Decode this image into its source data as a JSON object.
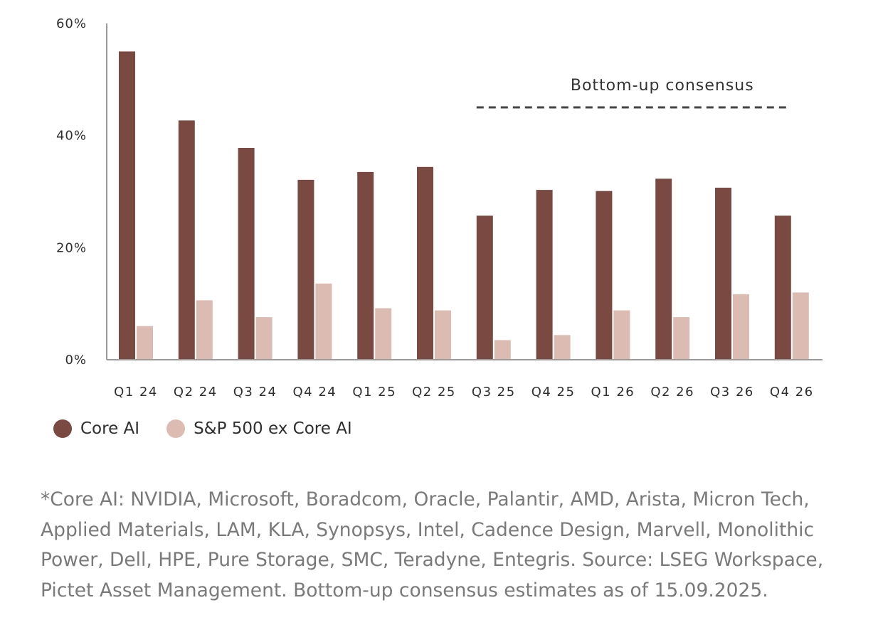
{
  "chart_data": {
    "type": "bar",
    "categories": [
      "Q1 24",
      "Q2 24",
      "Q3 24",
      "Q4 24",
      "Q1 25",
      "Q2 25",
      "Q3 25",
      "Q4 25",
      "Q1 26",
      "Q2 26",
      "Q3 26",
      "Q4 26"
    ],
    "series": [
      {
        "name": "Core AI",
        "color": "#7a4a42",
        "values": [
          55,
          42.7,
          37.8,
          32.1,
          33.5,
          34.4,
          25.7,
          30.3,
          30.1,
          32.3,
          30.7,
          25.7
        ]
      },
      {
        "name": "S&P 500 ex Core AI",
        "color": "#dcbcb2",
        "values": [
          6.0,
          10.6,
          7.6,
          13.6,
          9.2,
          8.8,
          3.5,
          4.4,
          8.8,
          7.6,
          11.7,
          12.0
        ]
      }
    ],
    "ylim": [
      0,
      60
    ],
    "yticks": [
      0,
      20,
      40,
      60
    ],
    "ytick_labels": [
      "0%",
      "20%",
      "40%",
      "60%"
    ],
    "annotation": {
      "text": "Bottom-up consensus",
      "from_category": "Q3 25",
      "to_category": "Q4 26"
    },
    "grid": false,
    "legend_position": "bottom-left"
  },
  "footnote": "*Core AI: NVIDIA, Microsoft, Boradcom, Oracle, Palantir, AMD, Arista, Micron Tech, Applied Materials, LAM, KLA, Synopsys, Intel, Cadence Design, Marvell, Monolithic Power, Dell, HPE, Pure Storage, SMC, Teradyne, Entegris. Source: LSEG Workspace, Pictet Asset Management. Bottom-up consensus estimates as of 15.09.2025."
}
